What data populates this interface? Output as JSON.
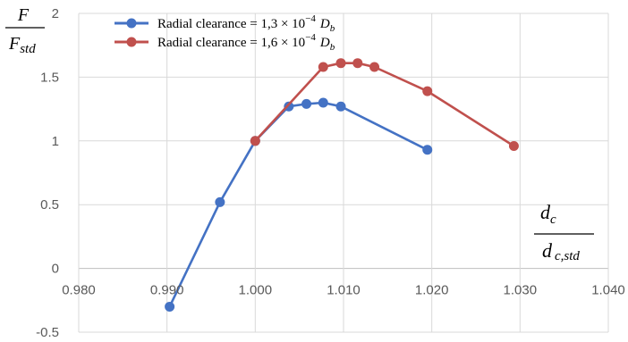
{
  "chart_data": {
    "type": "line",
    "xlabel": {
      "numerator": "d",
      "numerator_sub": "c",
      "denominator": "d",
      "denominator_sub": "c,std"
    },
    "ylabel": {
      "numerator": "F",
      "denominator": "F",
      "denominator_sub": "std"
    },
    "xlim": [
      0.98,
      1.04
    ],
    "ylim": [
      -0.5,
      2
    ],
    "x_ticks": [
      "0.980",
      "0.990",
      "1.000",
      "1.010",
      "1.020",
      "1.030",
      "1.040"
    ],
    "y_ticks": [
      "-0.5",
      "0",
      "0.5",
      "1",
      "1.5",
      "2"
    ],
    "grid": true,
    "legend_position": "top-center",
    "series": [
      {
        "name": "Radial clearance = 1,3 × 10",
        "name_sup": "−4",
        "name_var": "D",
        "name_var_sub": "b",
        "color": "#4472C4",
        "x": [
          0.9903,
          0.996,
          1.0,
          1.0038,
          1.0058,
          1.0077,
          1.0097,
          1.0195
        ],
        "y": [
          -0.3,
          0.52,
          1.0,
          1.27,
          1.29,
          1.3,
          1.27,
          0.93
        ]
      },
      {
        "name": "Radial clearance = 1,6 × 10",
        "name_sup": "−4",
        "name_var": "D",
        "name_var_sub": "b",
        "color": "#C0504D",
        "x": [
          1.0,
          1.0077,
          1.0097,
          1.0116,
          1.0135,
          1.0195,
          1.0293
        ],
        "y": [
          1.0,
          1.58,
          1.61,
          1.61,
          1.58,
          1.39,
          0.96
        ]
      }
    ]
  }
}
